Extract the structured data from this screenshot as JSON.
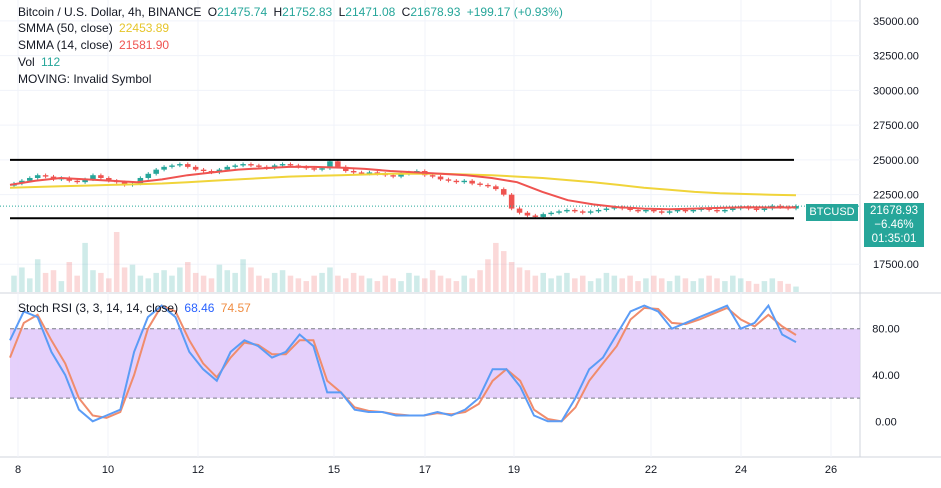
{
  "legend": {
    "title": "Bitcoin / U.S. Dollar, 4h, BINANCE",
    "ohlc": {
      "o_label": "O",
      "o": "21475.74",
      "h_label": "H",
      "h": "21752.83",
      "l_label": "L",
      "l": "21471.08",
      "c_label": "C",
      "c": "21678.93",
      "change": "+199.17 (+0.93%)"
    },
    "smma50_label": "SMMA (50, close)",
    "smma50_value": "22453.89",
    "smma14_label": "SMMA (14, close)",
    "smma14_value": "21581.90",
    "vol_label": "Vol",
    "vol_value": "112",
    "moving_label": "MOVING: Invalid Symbol",
    "stoch_label": "Stoch RSI (3, 3, 14, 14, close)",
    "stoch_k": "68.46",
    "stoch_d": "74.57"
  },
  "price_tag": {
    "symbol": "BTCUSD",
    "price": "21678.93",
    "change_pct": "−6.46%",
    "countdown": "01:35:01"
  },
  "colors": {
    "up": "#26a69a",
    "down": "#ef5350",
    "smma50": "#f0d43a",
    "smma14": "#ef5350",
    "stoch_k": "#5b9cf6",
    "stoch_d": "#f08c6c",
    "stoch_band": "#e1c8fa",
    "support_resistance": "#000000"
  },
  "chart_data": [
    {
      "type": "candlestick",
      "title": "Bitcoin / U.S. Dollar, 4h, BINANCE",
      "x_ticks": [
        "8",
        "10",
        "12",
        "15",
        "17",
        "19",
        "22",
        "24",
        "26"
      ],
      "y_ticks": [
        "35000.00",
        "32500.00",
        "30000.00",
        "27500.00",
        "25000.00",
        "22500.00",
        "17500.00"
      ],
      "ylim": [
        15500,
        36500
      ],
      "horizontal_levels": [
        25000,
        20800
      ],
      "closes": [
        23300,
        23500,
        23700,
        23900,
        23800,
        23600,
        23700,
        23500,
        23400,
        23600,
        23900,
        23700,
        23500,
        23400,
        23200,
        23300,
        23700,
        24000,
        24300,
        24500,
        24600,
        24700,
        24500,
        24300,
        24200,
        24100,
        24300,
        24500,
        24600,
        24700,
        24600,
        24500,
        24400,
        24600,
        24700,
        24600,
        24500,
        24400,
        24300,
        24400,
        24900,
        24500,
        24200,
        24100,
        24000,
        24100,
        24000,
        23900,
        23800,
        24000,
        24100,
        24200,
        23900,
        23800,
        23600,
        23500,
        23400,
        23500,
        23300,
        23200,
        23100,
        22900,
        22500,
        21500,
        21200,
        21000,
        20900,
        21100,
        21200,
        21300,
        21400,
        21300,
        21200,
        21300,
        21400,
        21500,
        21600,
        21500,
        21400,
        21300,
        21400,
        21300,
        21200,
        21300,
        21400,
        21300,
        21400,
        21500,
        21400,
        21300,
        21400,
        21500,
        21600,
        21500,
        21400,
        21500,
        21700,
        21600,
        21500,
        21678.93
      ],
      "smma50": [
        23000,
        23050,
        23100,
        23150,
        23200,
        23250,
        23300,
        23400,
        23500,
        23600,
        23700,
        23800,
        23850,
        23900,
        23950,
        24000,
        24000,
        24000,
        23950,
        23900,
        23800,
        23700,
        23550,
        23400,
        23200,
        23000,
        22850,
        22700,
        22600,
        22550,
        22500,
        22453.89
      ],
      "smma14": [
        23200,
        23500,
        23700,
        23600,
        23500,
        23400,
        23600,
        23900,
        24100,
        24300,
        24400,
        24500,
        24500,
        24450,
        24350,
        24200,
        24100,
        24000,
        23900,
        23700,
        23400,
        22700,
        22100,
        21800,
        21600,
        21500,
        21450,
        21500,
        21550,
        21600,
        21580,
        21581.9
      ],
      "volume": [
        30,
        45,
        25,
        60,
        35,
        40,
        20,
        55,
        30,
        90,
        40,
        35,
        25,
        110,
        45,
        50,
        30,
        25,
        35,
        40,
        30,
        45,
        55,
        35,
        30,
        25,
        50,
        40,
        35,
        60,
        45,
        30,
        25,
        35,
        40,
        30,
        25,
        20,
        30,
        35,
        45,
        30,
        25,
        35,
        30,
        25,
        20,
        30,
        25,
        20,
        35,
        30,
        25,
        40,
        30,
        25,
        20,
        30,
        25,
        40,
        60,
        90,
        75,
        55,
        45,
        40,
        30,
        35,
        25,
        30,
        35,
        25,
        30,
        20,
        25,
        35,
        30,
        25,
        30,
        20,
        25,
        30,
        25,
        20,
        30,
        25,
        20,
        25,
        30,
        25,
        20,
        30,
        25,
        20,
        15,
        20,
        25,
        20,
        15,
        10
      ]
    },
    {
      "type": "line",
      "title": "Stoch RSI (3, 3, 14, 14, close)",
      "y_ticks": [
        "80.00",
        "40.00",
        "0.00"
      ],
      "ylim": [
        -30,
        110
      ],
      "band": [
        20,
        80
      ],
      "series": [
        {
          "name": "%K",
          "values": [
            70,
            95,
            90,
            60,
            40,
            10,
            0,
            5,
            10,
            60,
            90,
            100,
            90,
            60,
            45,
            35,
            60,
            70,
            65,
            55,
            60,
            75,
            65,
            25,
            25,
            10,
            8,
            8,
            5,
            5,
            5,
            8,
            5,
            10,
            20,
            45,
            45,
            30,
            5,
            0,
            0,
            20,
            45,
            55,
            75,
            95,
            100,
            95,
            80,
            85,
            90,
            95,
            100,
            80,
            85,
            100,
            75,
            68.46
          ]
        },
        {
          "name": "%D",
          "values": [
            55,
            85,
            92,
            70,
            50,
            20,
            5,
            3,
            8,
            40,
            80,
            100,
            95,
            70,
            50,
            38,
            55,
            68,
            66,
            58,
            58,
            70,
            70,
            35,
            25,
            12,
            9,
            8,
            6,
            5,
            5,
            7,
            6,
            8,
            15,
            35,
            45,
            35,
            10,
            2,
            0,
            12,
            35,
            50,
            65,
            88,
            98,
            97,
            85,
            84,
            88,
            93,
            98,
            88,
            82,
            92,
            82,
            74.57
          ]
        }
      ]
    }
  ]
}
